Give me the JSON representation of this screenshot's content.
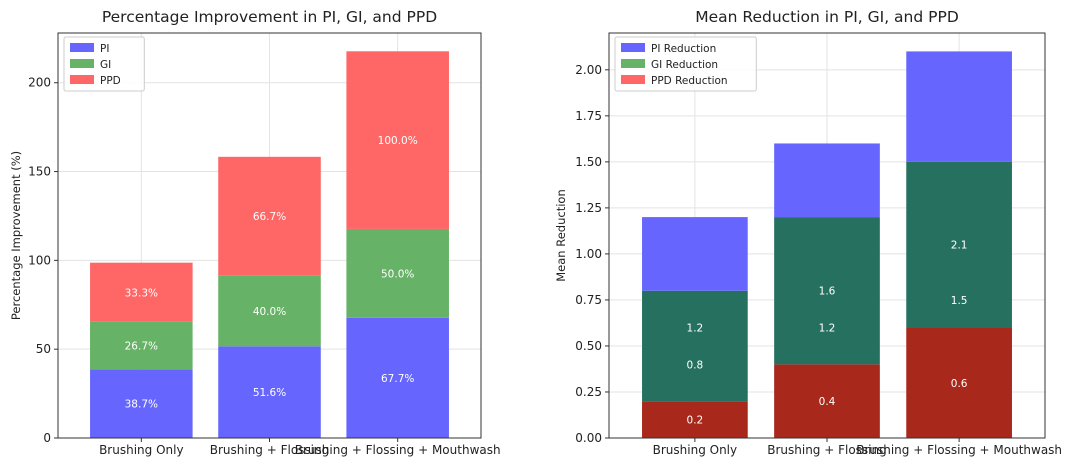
{
  "chart_data": [
    {
      "type": "bar",
      "stacked": true,
      "title": "Percentage Improvement in PI, GI, and PPD",
      "xlabel": "",
      "ylabel": "Percentage Improvement (%)",
      "categories": [
        "Brushing Only",
        "Brushing + Flossing",
        "Brushing + Flossing + Mouthwash"
      ],
      "ylim": [
        0,
        228
      ],
      "yticks": [
        0,
        50,
        100,
        150,
        200
      ],
      "grid": true,
      "legend_position": "top-left",
      "series": [
        {
          "name": "PI",
          "color": "#6666ff",
          "values": [
            38.7,
            51.6,
            67.7
          ],
          "labels": [
            "38.7%",
            "51.6%",
            "67.7%"
          ]
        },
        {
          "name": "GI",
          "color": "#66b266",
          "values": [
            26.7,
            40.0,
            50.0
          ],
          "labels": [
            "26.7%",
            "40.0%",
            "50.0%"
          ]
        },
        {
          "name": "PPD",
          "color": "#ff6666",
          "values": [
            33.3,
            66.7,
            100.0
          ],
          "labels": [
            "33.3%",
            "66.7%",
            "100.0%"
          ]
        }
      ]
    },
    {
      "type": "bar",
      "stacked": false,
      "overlaid": true,
      "title": "Mean Reduction in PI, GI, and PPD",
      "xlabel": "",
      "ylabel": "Mean Reduction",
      "categories": [
        "Brushing Only",
        "Brushing + Flossing",
        "Brushing + Flossing + Mouthwash"
      ],
      "ylim": [
        0,
        2.2
      ],
      "yticks": [
        0.0,
        0.25,
        0.5,
        0.75,
        1.0,
        1.25,
        1.5,
        1.75,
        2.0
      ],
      "grid": true,
      "legend_position": "top-left",
      "series": [
        {
          "name": "PI Reduction",
          "color": "#6666ff",
          "values": [
            1.2,
            1.6,
            2.1
          ]
        },
        {
          "name": "GI Reduction",
          "color": "#66b266",
          "values": [
            0.8,
            1.2,
            1.5
          ]
        },
        {
          "name": "PPD Reduction",
          "color": "#ff6666",
          "values": [
            0.2,
            0.4,
            0.6
          ]
        }
      ],
      "overlap_colors": {
        "pi_gi": "#267060",
        "gi_ppd": "#a8281c"
      },
      "annotations": [
        {
          "category": 0,
          "value": 1.2,
          "text": "1.2"
        },
        {
          "category": 1,
          "value": 1.6,
          "text": "1.6"
        },
        {
          "category": 2,
          "value": 2.1,
          "text": "2.1"
        },
        {
          "category": 0,
          "value": 0.8,
          "text": "0.8"
        },
        {
          "category": 1,
          "value": 1.2,
          "text": "1.2"
        },
        {
          "category": 2,
          "value": 1.5,
          "text": "1.5"
        },
        {
          "category": 0,
          "value": 0.2,
          "text": "0.2"
        },
        {
          "category": 1,
          "value": 0.4,
          "text": "0.4"
        },
        {
          "category": 2,
          "value": 0.6,
          "text": "0.6"
        }
      ]
    }
  ]
}
